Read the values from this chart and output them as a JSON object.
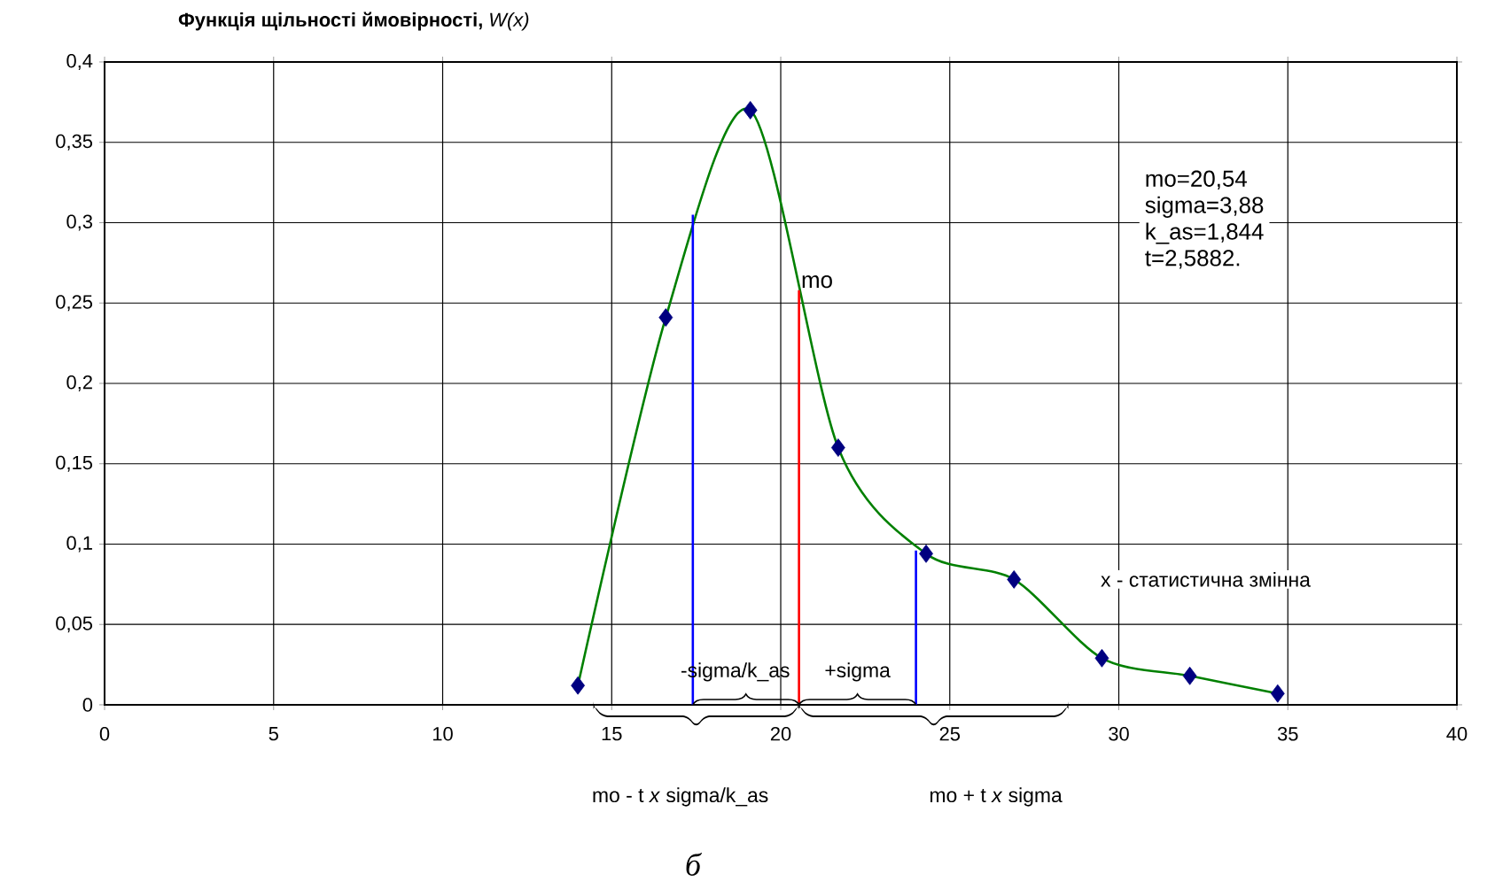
{
  "chart_data": {
    "type": "line",
    "title": "**Функція щільності ймовірності,** *W(x)*",
    "xlim": [
      0,
      40
    ],
    "ylim": [
      0,
      0.4
    ],
    "xticks": [
      0,
      5,
      10,
      15,
      20,
      25,
      30,
      35,
      40
    ],
    "yticks": [
      0,
      {
        "value": 0.05,
        "label": "0,05"
      },
      {
        "value": 0.1,
        "label": "0,1"
      },
      {
        "value": 0.15,
        "label": "0,15"
      },
      {
        "value": 0.2,
        "label": "0,2"
      },
      {
        "value": 0.25,
        "label": "0,25"
      },
      {
        "value": 0.3,
        "label": "0,3"
      },
      {
        "value": 0.35,
        "label": "0,35"
      },
      {
        "value": 0.4,
        "label": "0,4"
      }
    ],
    "grid": true,
    "marker": "diamond",
    "series": [
      {
        "marker": "none",
        "color": "#008000",
        "x": [
          14.0,
          16.6,
          19.1,
          21.7,
          24.3,
          26.9,
          29.5,
          32.1,
          34.7
        ],
        "values": [
          0.012,
          0.241,
          0.37,
          0.16,
          0.094,
          0.078,
          0.029,
          0.018,
          0.007
        ]
      },
      {
        "type": "scatter",
        "color": "#000080",
        "x": [
          14.0,
          16.6,
          19.1,
          21.7,
          24.3,
          26.9,
          29.5,
          32.1,
          34.7
        ],
        "values": [
          0.012,
          0.241,
          0.37,
          0.16,
          0.094,
          0.078,
          0.029,
          0.018,
          0.007
        ]
      },
      {
        "marker": "none",
        "color": "#0000ff",
        "x": [
          17.4,
          17.4
        ],
        "values": [
          0,
          0.305
        ]
      },
      {
        "marker": "none",
        "color": "#ff0000",
        "x": [
          20.54,
          20.54
        ],
        "values": [
          0,
          0.258
        ]
      },
      {
        "marker": "none",
        "color": "#0000ff",
        "x": [
          24.0,
          24.0
        ],
        "values": [
          0,
          0.096
        ]
      }
    ],
    "annotations": [
      {
        "text": "mo",
        "x": 20.54,
        "y": 0.258
      },
      {
        "text": "-sigma/k_as",
        "x": 17.4,
        "y": 0
      },
      {
        "text": "+sigma",
        "x": 24.0,
        "y": 0
      },
      "mo - t  *x* sigma/k_as",
      "mo + t  *x* sigma",
      "mo=20,54",
      "sigma=3,88",
      "k_as=1,844",
      "t=2,5882.",
      "x - статистична змінна",
      "б"
    ]
  }
}
